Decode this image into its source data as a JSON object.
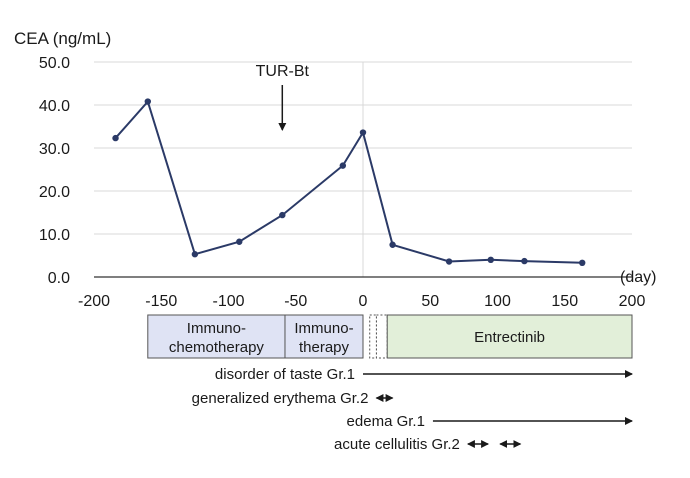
{
  "chart_data": {
    "type": "line",
    "title": "",
    "ylabel": "CEA (ng/mL)",
    "xlabel": "(day)",
    "xlim": [
      -200,
      200
    ],
    "ylim": [
      0,
      50
    ],
    "x_ticks": [
      -200,
      -150,
      -100,
      -50,
      0,
      50,
      100,
      150,
      200
    ],
    "x_tick_labels": [
      "-200",
      "-150",
      "-100",
      "-50",
      "0",
      "50",
      "100",
      "150",
      "200"
    ],
    "y_ticks": [
      0,
      10,
      20,
      30,
      40,
      50
    ],
    "y_tick_labels": [
      "0.0",
      "10.0",
      "20.0",
      "30.0",
      "40.0",
      "50.0"
    ],
    "grid": "horizontal",
    "series": [
      {
        "x": [
          -184,
          -160,
          -125,
          -92,
          -60,
          -15,
          0,
          22,
          64,
          95,
          120,
          163
        ],
        "values": [
          32.3,
          40.8,
          5.3,
          8.2,
          14.4,
          25.9,
          33.6,
          7.5,
          3.6,
          4.0,
          3.7,
          3.3
        ]
      }
    ],
    "annotation": {
      "label": "TUR-Bt",
      "x": -60
    },
    "reference_line_x": 0,
    "treatments": [
      {
        "label_line1": "Immuno-",
        "label_line2": "chemotherapy",
        "start": -160,
        "end": -58,
        "color": "#dfe3f4",
        "style": "solid"
      },
      {
        "label_line1": "Immuno-",
        "label_line2": "therapy",
        "start": -58,
        "end": 0,
        "color": "#dfe3f4",
        "style": "solid"
      },
      {
        "label_line1": "",
        "label_line2": "",
        "start": 5,
        "end": 10,
        "color": "#ffffff",
        "style": "dotted"
      },
      {
        "label_line1": "",
        "label_line2": "",
        "start": 10,
        "end": 18,
        "color": "#ffffff",
        "style": "dotted"
      },
      {
        "label_line1": "Entrectinib",
        "label_line2": "",
        "start": 18,
        "end": 200,
        "color": "#e2efd9",
        "style": "solid"
      }
    ],
    "adverse_events": [
      {
        "label": "disorder of taste Gr.1",
        "start": 0,
        "end": 200,
        "type": "arrow"
      },
      {
        "label": "generalized erythema Gr.2",
        "start": 10,
        "end": 22,
        "type": "double"
      },
      {
        "label": "edema Gr.1",
        "start": 52,
        "end": 200,
        "type": "arrow"
      },
      {
        "label": "acute cellulitis Gr.2",
        "start": 78,
        "end": 93,
        "type": "double",
        "extra_start": 102,
        "extra_end": 117
      }
    ]
  },
  "colors": {
    "line": "#2b3a67",
    "grid": "#d9d9d9",
    "axis": "#333333",
    "immuno_box": "#dfe3f4",
    "entrectinib_box": "#e2efd9"
  }
}
